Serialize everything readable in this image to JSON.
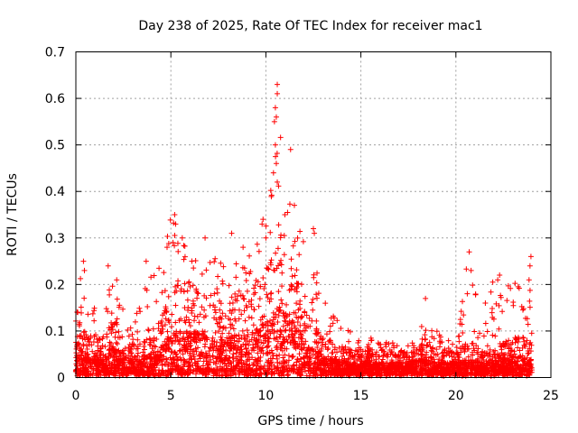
{
  "chart_data": {
    "type": "scatter",
    "title": "Day 238 of 2025, Rate Of TEC Index for receiver mac1",
    "xlabel": "GPS time / hours",
    "ylabel": "ROTI / TECUs",
    "xlim": [
      0,
      25
    ],
    "ylim": [
      0,
      0.7
    ],
    "x_ticks": [
      "0",
      "5",
      "10",
      "15",
      "20",
      "25"
    ],
    "y_ticks": [
      "0",
      "0.1",
      "0.2",
      "0.3",
      "0.4",
      "0.5",
      "0.6",
      "0.7"
    ],
    "grid": true,
    "marker": "plus",
    "color": "#ff0000",
    "envelope": {
      "hour": [
        0,
        0.2,
        0.5,
        1,
        1.5,
        2,
        2.5,
        3,
        3.5,
        4,
        4.5,
        5,
        5.5,
        6,
        6.5,
        7,
        7.5,
        8,
        8.5,
        9,
        9.5,
        10,
        10.5,
        10.8,
        11,
        11.5,
        12,
        12.5,
        13,
        13.5,
        14,
        14.5,
        15,
        15.5,
        16,
        16.5,
        17,
        17.5,
        18,
        18.5,
        19,
        19.5,
        20,
        20.5,
        21,
        21.5,
        22,
        22.5,
        23,
        23.5,
        24
      ],
      "typical_roti": [
        0.05,
        0.08,
        0.07,
        0.06,
        0.06,
        0.09,
        0.07,
        0.05,
        0.05,
        0.07,
        0.09,
        0.12,
        0.15,
        0.14,
        0.13,
        0.12,
        0.11,
        0.12,
        0.13,
        0.13,
        0.14,
        0.17,
        0.2,
        0.22,
        0.2,
        0.16,
        0.12,
        0.08,
        0.06,
        0.05,
        0.05,
        0.04,
        0.04,
        0.04,
        0.04,
        0.04,
        0.04,
        0.04,
        0.05,
        0.05,
        0.04,
        0.04,
        0.04,
        0.05,
        0.05,
        0.04,
        0.04,
        0.05,
        0.06,
        0.06,
        0.05
      ],
      "max_roti": [
        0.15,
        0.25,
        0.2,
        0.15,
        0.24,
        0.2,
        0.15,
        0.12,
        0.18,
        0.25,
        0.28,
        0.35,
        0.3,
        0.3,
        0.28,
        0.27,
        0.25,
        0.28,
        0.3,
        0.28,
        0.33,
        0.34,
        0.5,
        0.63,
        0.4,
        0.37,
        0.35,
        0.32,
        0.18,
        0.14,
        0.12,
        0.1,
        0.09,
        0.09,
        0.08,
        0.08,
        0.08,
        0.08,
        0.1,
        0.13,
        0.1,
        0.08,
        0.1,
        0.27,
        0.19,
        0.16,
        0.22,
        0.16,
        0.25,
        0.26,
        0.25
      ]
    },
    "peaks": [
      {
        "x": 10.6,
        "y": 0.63
      },
      {
        "x": 10.6,
        "y": 0.61
      },
      {
        "x": 10.5,
        "y": 0.58
      },
      {
        "x": 10.55,
        "y": 0.56
      },
      {
        "x": 10.45,
        "y": 0.55
      },
      {
        "x": 10.5,
        "y": 0.5
      },
      {
        "x": 10.55,
        "y": 0.46
      },
      {
        "x": 11.3,
        "y": 0.49
      },
      {
        "x": 10.6,
        "y": 0.42
      },
      {
        "x": 10.4,
        "y": 0.44
      },
      {
        "x": 5.2,
        "y": 0.35
      },
      {
        "x": 5.25,
        "y": 0.33
      },
      {
        "x": 5.6,
        "y": 0.3
      },
      {
        "x": 4.8,
        "y": 0.28
      },
      {
        "x": 6.8,
        "y": 0.3
      },
      {
        "x": 9.85,
        "y": 0.34
      },
      {
        "x": 9.8,
        "y": 0.33
      },
      {
        "x": 10.0,
        "y": 0.3
      },
      {
        "x": 12.5,
        "y": 0.32
      },
      {
        "x": 12.55,
        "y": 0.31
      },
      {
        "x": 8.2,
        "y": 0.31
      },
      {
        "x": 8.8,
        "y": 0.28
      },
      {
        "x": 11.5,
        "y": 0.37
      },
      {
        "x": 11.0,
        "y": 0.35
      },
      {
        "x": 20.7,
        "y": 0.27
      },
      {
        "x": 23.95,
        "y": 0.26
      },
      {
        "x": 23.9,
        "y": 0.24
      },
      {
        "x": 0.4,
        "y": 0.25
      },
      {
        "x": 0.45,
        "y": 0.23
      },
      {
        "x": 1.7,
        "y": 0.24
      },
      {
        "x": 3.7,
        "y": 0.25
      },
      {
        "x": 22.3,
        "y": 0.22
      },
      {
        "x": 22.2,
        "y": 0.21
      },
      {
        "x": 20.8,
        "y": 0.23
      },
      {
        "x": 23.85,
        "y": 0.21
      },
      {
        "x": 18.4,
        "y": 0.17
      },
      {
        "x": 21.55,
        "y": 0.16
      },
      {
        "x": 20.6,
        "y": 0.18
      },
      {
        "x": 2.15,
        "y": 0.21
      },
      {
        "x": 0.1,
        "y": 0.14
      }
    ]
  }
}
